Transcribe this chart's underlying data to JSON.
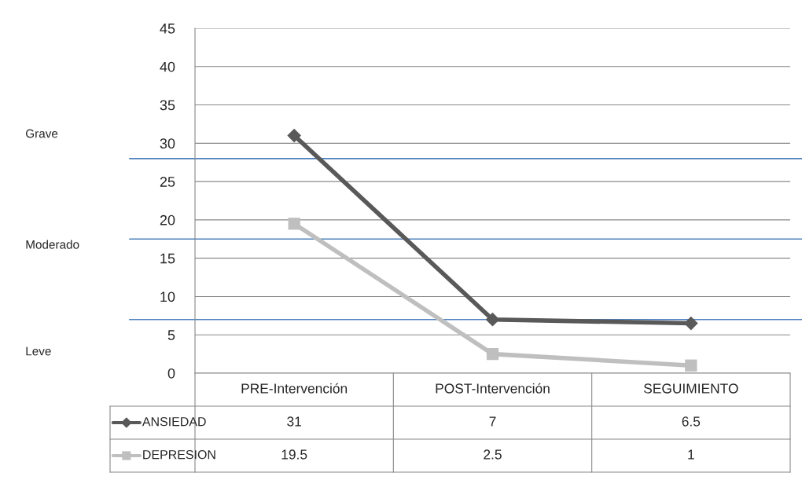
{
  "chart_data": {
    "type": "line",
    "categories": [
      "PRE-Intervención",
      "POST-Intervención",
      "SEGUIMIENTO"
    ],
    "series": [
      {
        "name": "ANSIEDAD",
        "color": "#595959",
        "values": [
          31,
          7,
          6.5
        ],
        "marker": "diamond"
      },
      {
        "name": "DEPRESION",
        "color": "#bfbfbf",
        "values": [
          19.5,
          2.5,
          1
        ],
        "marker": "square"
      }
    ],
    "ylim": [
      0,
      45
    ],
    "yticks": [
      0,
      5,
      10,
      15,
      20,
      25,
      30,
      35,
      40,
      45
    ],
    "grid": "y",
    "data_labels": true,
    "legend": "bottom",
    "ref_lines": [
      {
        "axis": "y",
        "value": 28,
        "color": "#4f81bd"
      },
      {
        "axis": "y",
        "value": 17.5,
        "color": "#4f81bd"
      },
      {
        "axis": "y",
        "value": 7,
        "color": "#4f81bd"
      }
    ],
    "annotations": [
      "Grave",
      "Moderado",
      "Leve"
    ]
  }
}
